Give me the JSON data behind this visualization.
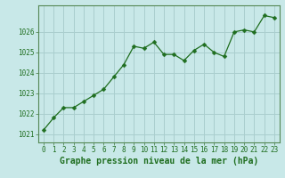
{
  "x": [
    0,
    1,
    2,
    3,
    4,
    5,
    6,
    7,
    8,
    9,
    10,
    11,
    12,
    13,
    14,
    15,
    16,
    17,
    18,
    19,
    20,
    21,
    22,
    23
  ],
  "y": [
    1021.2,
    1021.8,
    1022.3,
    1022.3,
    1022.6,
    1022.9,
    1023.2,
    1023.8,
    1024.4,
    1025.3,
    1025.2,
    1025.5,
    1024.9,
    1024.9,
    1024.6,
    1025.1,
    1025.4,
    1025.0,
    1024.8,
    1026.0,
    1026.1,
    1026.0,
    1026.8,
    1026.7
  ],
  "line_color": "#1f6e1f",
  "marker": "D",
  "marker_size": 2.5,
  "bg_color": "#c8e8e8",
  "grid_color": "#aacece",
  "xlabel": "Graphe pression niveau de la mer (hPa)",
  "xlabel_fontsize": 7,
  "ylabel_ticks": [
    1021,
    1022,
    1023,
    1024,
    1025,
    1026
  ],
  "ylim": [
    1020.6,
    1027.3
  ],
  "xlim": [
    -0.5,
    23.5
  ],
  "xticks": [
    0,
    1,
    2,
    3,
    4,
    5,
    6,
    7,
    8,
    9,
    10,
    11,
    12,
    13,
    14,
    15,
    16,
    17,
    18,
    19,
    20,
    21,
    22,
    23
  ],
  "tick_fontsize": 5.5,
  "label_color": "#1f6e1f",
  "spine_color": "#558855"
}
